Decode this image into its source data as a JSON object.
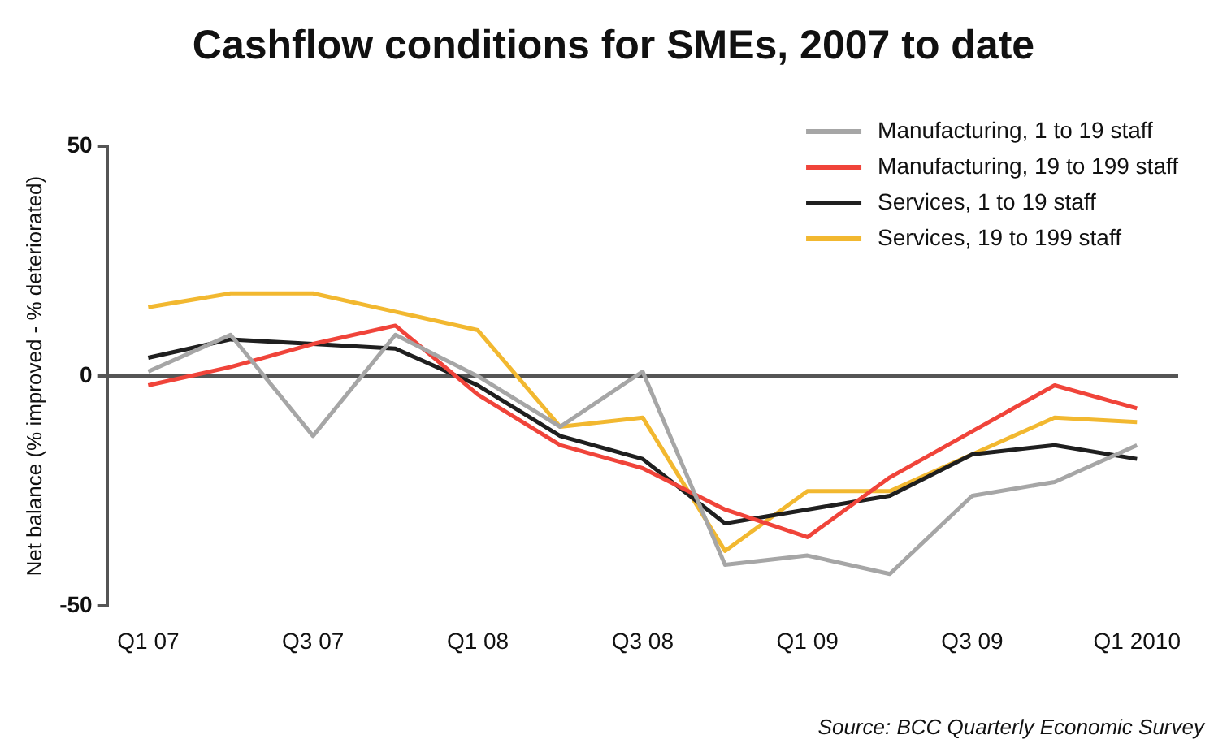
{
  "chart_data": {
    "type": "line",
    "title": "Cashflow conditions for SMEs, 2007 to date",
    "ylabel": "Net balance (% improved - % deteriorated)",
    "categories": [
      "Q1 07",
      null,
      "Q3 07",
      null,
      "Q1 08",
      null,
      "Q3 08",
      null,
      "Q1 09",
      null,
      "Q3 09",
      null,
      "Q1 2010"
    ],
    "series": [
      {
        "name": "Manufacturing, 1 to 19 staff",
        "color": "#a6a6a6",
        "values": [
          1,
          9,
          -13,
          9,
          0,
          -11,
          1,
          -41,
          -39,
          -43,
          -26,
          -23,
          -15
        ]
      },
      {
        "name": "Manufacturing, 19 to 199 staff",
        "color": "#f0443a",
        "values": [
          -2,
          2,
          7,
          11,
          -4,
          -15,
          -20,
          -29,
          -35,
          -22,
          -12,
          -2,
          -7
        ]
      },
      {
        "name": "Services, 1 to 19 staff",
        "color": "#1f1f1f",
        "values": [
          4,
          8,
          7,
          6,
          -2,
          -13,
          -18,
          -32,
          -29,
          -26,
          -17,
          -15,
          -18
        ]
      },
      {
        "name": "Services, 19 to 199 staff",
        "color": "#f2b830",
        "values": [
          15,
          18,
          18,
          14,
          10,
          -11,
          -9,
          -38,
          -25,
          -25,
          -17,
          -9,
          -10
        ]
      }
    ],
    "ylim": [
      -50,
      50
    ],
    "yticks": [
      -50,
      0,
      50
    ],
    "legend": "top right",
    "marker": "none",
    "line_style": "solid",
    "annotations": [
      "Source: BCC Quarterly Economic Survey"
    ]
  }
}
